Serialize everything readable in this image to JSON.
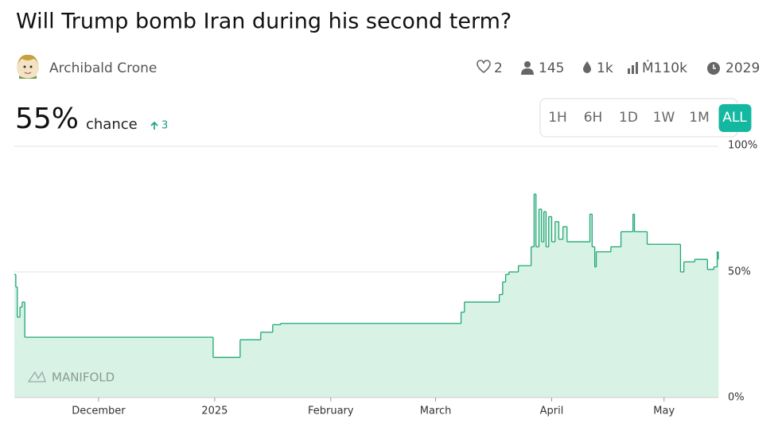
{
  "market": {
    "title": "Will Trump bomb Iran during his second term?",
    "author": "Archibald Crone",
    "stats": [
      "2",
      "145",
      "1k",
      "Ṁ110k",
      "2029"
    ],
    "probability": "55%",
    "chance_label": "chance",
    "change": "3",
    "time_ranges": [
      "1H",
      "6H",
      "1D",
      "1W",
      "1M",
      "ALL"
    ],
    "active_range": "ALL",
    "watermark": "MANIFOLD"
  },
  "chart_data": {
    "type": "step-area",
    "color": "#1fa774",
    "fill": "#d9f2e6",
    "x": [
      -22.5,
      -22.1,
      -21.7,
      -21.0,
      -20.4,
      -19.7,
      30.6,
      37.8,
      43.3,
      46.5,
      48.6,
      96.8,
      97.7,
      107.0,
      107.9,
      108.7,
      109.6,
      112.1,
      115.5,
      116.3,
      116.8,
      117.6,
      118.3,
      118.9,
      119.5,
      120.2,
      121.0,
      121.9,
      122.9,
      124.0,
      125.1,
      126.1,
      131.2,
      131.8,
      132.5,
      132.9,
      135.9,
      136.8,
      139.5,
      140.3,
      142.7,
      143.1,
      145.2,
      146.5,
      147.8,
      154.6,
      155.4,
      156.3,
      159.2,
      162.6,
      164.3,
      165.2,
      165.5
    ],
    "values": [
      49,
      44,
      32,
      36,
      38,
      24,
      16,
      23,
      26,
      29,
      29.5,
      34,
      38,
      41,
      46,
      49,
      50,
      52.5,
      60,
      81,
      60,
      75,
      62,
      74,
      60,
      72,
      62,
      70,
      63,
      68,
      62,
      62,
      73,
      60,
      52,
      58,
      58,
      60,
      66,
      66,
      73,
      66,
      66,
      61,
      61,
      61,
      50,
      54,
      55,
      51,
      52,
      58,
      55
    ],
    "xlim": [
      -22.5,
      165.5
    ],
    "xticks": [
      {
        "value": 0,
        "label": "December"
      },
      {
        "value": 31,
        "label": "2025"
      },
      {
        "value": 62,
        "label": "February"
      },
      {
        "value": 90,
        "label": "March"
      },
      {
        "value": 121,
        "label": "April"
      },
      {
        "value": 151,
        "label": "May"
      }
    ],
    "ylim": [
      0,
      100
    ],
    "yticks": [
      {
        "value": 0,
        "label": "0%"
      },
      {
        "value": 50,
        "label": "50%"
      },
      {
        "value": 100,
        "label": "100%"
      }
    ],
    "grid": true
  }
}
